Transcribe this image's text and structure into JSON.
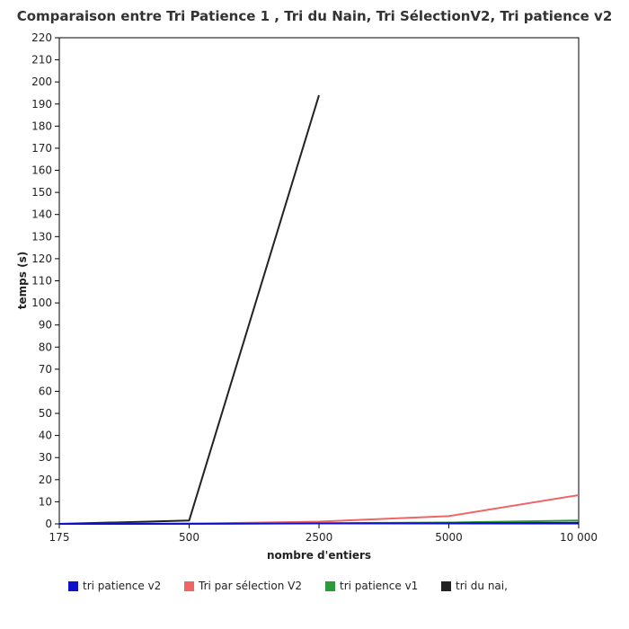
{
  "chart_data": {
    "type": "line",
    "title": "Comparaison entre Tri Patience 1 , Tri du Nain, Tri SélectionV2, Tri patience v2",
    "xlabel": "nombre d'entiers",
    "ylabel": "temps (s)",
    "categories": [
      "175",
      "500",
      "2500",
      "5000",
      "10 000"
    ],
    "ylim": [
      0,
      220
    ],
    "yticks": [
      0,
      10,
      20,
      30,
      40,
      50,
      60,
      70,
      80,
      90,
      100,
      110,
      120,
      130,
      140,
      150,
      160,
      170,
      180,
      190,
      200,
      210,
      220
    ],
    "grid": false,
    "legend_position": "bottom",
    "series": [
      {
        "name": "tri patience v2",
        "color": "#1010c8",
        "values": [
          0,
          0.05,
          0.2,
          0.3,
          0.5
        ]
      },
      {
        "name": "Tri par sélection V2",
        "color": "#f06464",
        "values": [
          0,
          0.1,
          1.0,
          3.5,
          13.0
        ]
      },
      {
        "name": "tri patience v1",
        "color": "#2a9a3a",
        "values": [
          0,
          0.05,
          0.3,
          0.6,
          1.5
        ]
      },
      {
        "name": "tri du nai,",
        "color": "#222222",
        "values": [
          0,
          1.5,
          194,
          null,
          null
        ]
      }
    ]
  }
}
